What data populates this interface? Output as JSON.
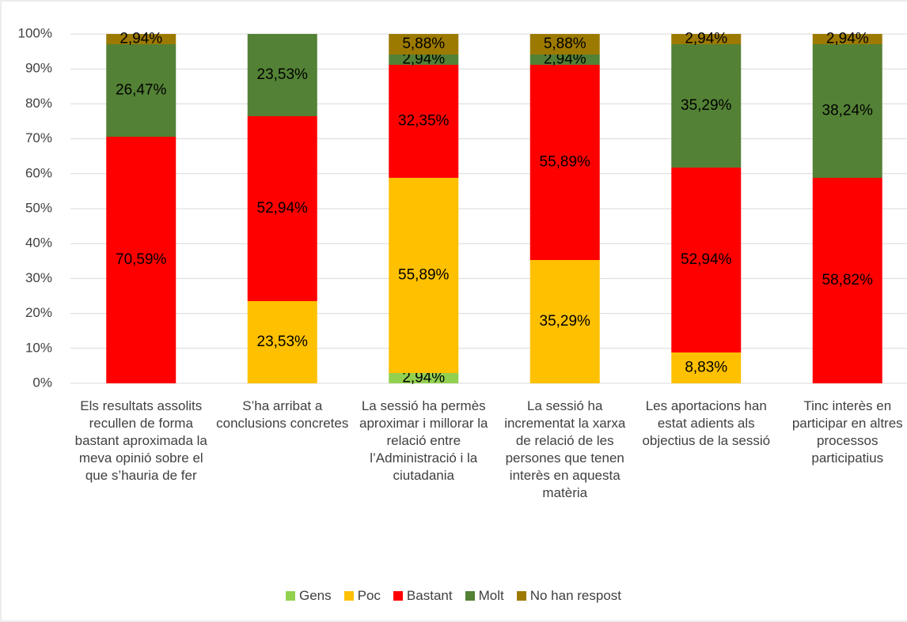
{
  "chart_data": {
    "type": "stacked_bar",
    "categories": [
      "Els resultats assolits recullen de forma bastant aproximada la meva opinió sobre el que s’hauria de fer",
      "S’ha arribat a conclusions concretes",
      "La sessió ha permès aproximar i millorar la relació entre l’Administració i la ciutadania",
      "La sessió ha incrementat la xarxa de relació de les persones que tenen interès en aquesta matèria",
      "Les aportacions han estat adients als objectius de la sessió",
      "Tinc interès en participar en altres processos participatius"
    ],
    "series": [
      {
        "name": "Gens",
        "color": "#92d050",
        "values": [
          0,
          0,
          2.94,
          0,
          0,
          0
        ],
        "value_labels": [
          null,
          null,
          "2,94%",
          null,
          null,
          null
        ]
      },
      {
        "name": "Poc",
        "color": "#ffc000",
        "values": [
          0,
          23.53,
          55.89,
          35.29,
          8.83,
          0
        ],
        "value_labels": [
          null,
          "23,53%",
          "55,89%",
          "35,29%",
          "8,83%",
          null
        ]
      },
      {
        "name": "Bastant",
        "color": "#ff0000",
        "values": [
          70.59,
          52.94,
          32.35,
          55.89,
          52.94,
          58.82
        ],
        "value_labels": [
          "70,59%",
          "52,94%",
          "32,35%",
          "55,89%",
          "52,94%",
          "58,82%"
        ]
      },
      {
        "name": "Molt",
        "color": "#538135",
        "values": [
          26.47,
          23.53,
          2.94,
          2.94,
          35.29,
          38.24
        ],
        "value_labels": [
          "26,47%",
          "23,53%",
          "2,94%",
          "2,94%",
          "35,29%",
          "38,24%"
        ]
      },
      {
        "name": "No han respost",
        "color": "#9c7a00",
        "values": [
          2.94,
          0,
          5.88,
          5.88,
          2.94,
          2.94
        ],
        "value_labels": [
          "2,94%",
          null,
          "5,88%",
          "5,88%",
          "2,94%",
          "2,94%"
        ]
      }
    ],
    "ylim": [
      0,
      100
    ],
    "yticks": [
      {
        "value": 0,
        "label": "0%"
      },
      {
        "value": 10,
        "label": "10%"
      },
      {
        "value": 20,
        "label": "20%"
      },
      {
        "value": 30,
        "label": "30%"
      },
      {
        "value": 40,
        "label": "40%"
      },
      {
        "value": 50,
        "label": "50%"
      },
      {
        "value": 60,
        "label": "60%"
      },
      {
        "value": 70,
        "label": "70%"
      },
      {
        "value": 80,
        "label": "80%"
      },
      {
        "value": 90,
        "label": "90%"
      },
      {
        "value": 100,
        "label": "100%"
      }
    ],
    "grid": true,
    "legend": "bottom"
  }
}
